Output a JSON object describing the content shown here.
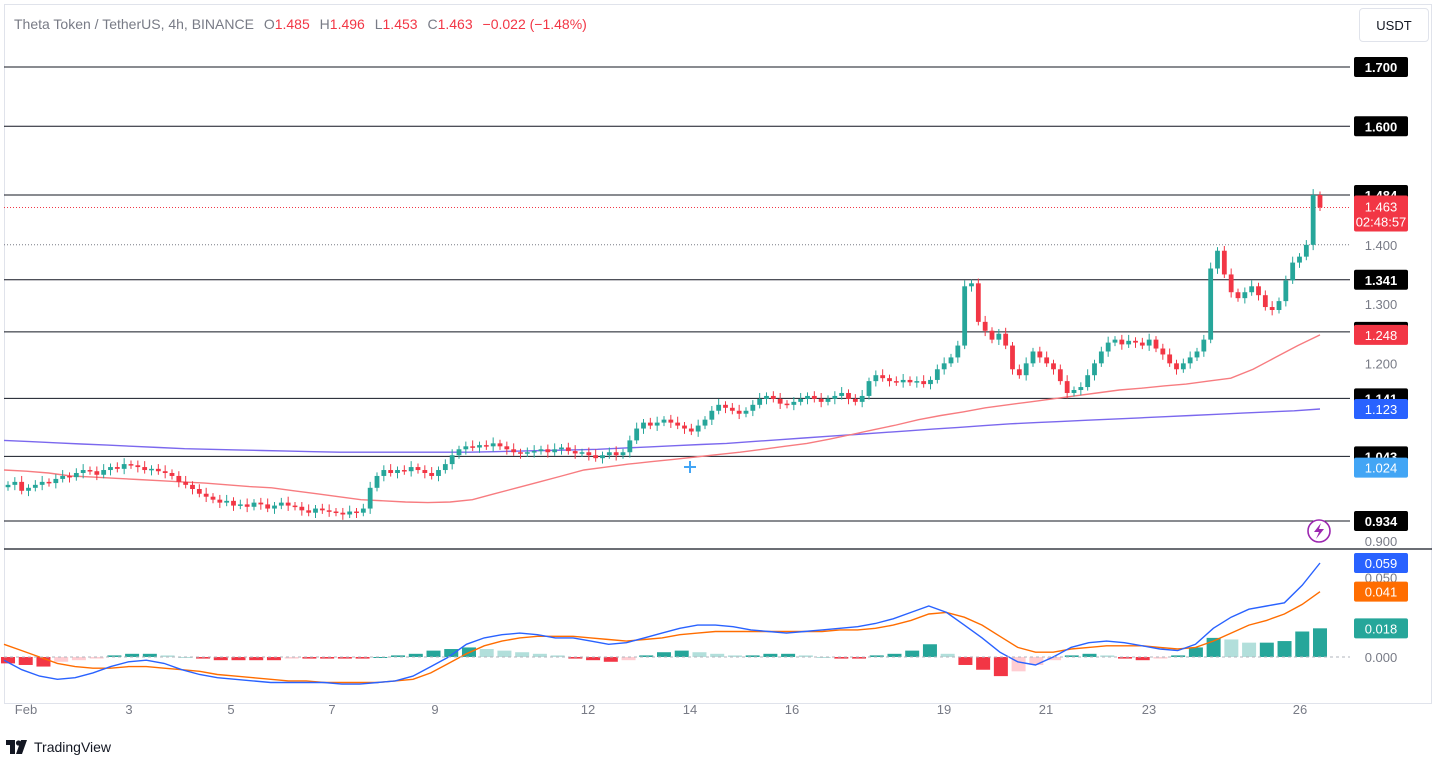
{
  "header": {
    "symbol": "Theta Token / TetherUS, 4h, BINANCE",
    "open_label": "O",
    "open": "1.485",
    "high_label": "H",
    "high": "1.496",
    "low_label": "L",
    "low": "1.453",
    "close_label": "C",
    "close": "1.463",
    "change": "−0.022 (−1.48%)"
  },
  "currency_button": "USDT",
  "footer": {
    "brand": "TradingView",
    "logo": "tradingview-logo"
  },
  "colors": {
    "up": "#26a69a",
    "down": "#f23645",
    "ema_short": "#f77c80",
    "ema_long": "#7b68ee",
    "macd": "#2962ff",
    "signal": "#ff6d00"
  },
  "chart_data": [
    {
      "type": "candlestick",
      "title": "Theta Token / TetherUS, 4h, BINANCE",
      "ylim": [
        0.88,
        1.75
      ],
      "y_ticks": [
        "1.400",
        "1.300",
        "1.200",
        "0.900"
      ],
      "x_ticks": [
        "Feb",
        "3",
        "5",
        "7",
        "9",
        "12",
        "14",
        "16",
        "19",
        "21",
        "23",
        "26"
      ],
      "last_price": "1.463",
      "countdown": "02:48:57",
      "horizontal_levels": [
        {
          "label": "1.700",
          "value": 1.7
        },
        {
          "label": "1.600",
          "value": 1.6
        },
        {
          "label": "1.484",
          "value": 1.484
        },
        {
          "label": "1.341",
          "value": 1.341
        },
        {
          "label": "1.253",
          "value": 1.253
        },
        {
          "label": "1.141",
          "value": 1.141
        },
        {
          "label": "1.043",
          "value": 1.043
        },
        {
          "label": "0.934",
          "value": 0.934
        }
      ],
      "indicator_badges": [
        {
          "label": "1.248",
          "value": 1.248,
          "color": "#f23645"
        },
        {
          "label": "1.123",
          "value": 1.123,
          "color": "#2962ff"
        },
        {
          "label": "1.024",
          "value": 1.024,
          "color": "#42a5f5"
        }
      ],
      "close_series": [
        0.995,
        1.0,
        0.985,
        0.99,
        0.995,
        1.0,
        0.998,
        1.005,
        1.01,
        1.008,
        1.015,
        1.02,
        1.018,
        1.012,
        1.02,
        1.025,
        1.022,
        1.03,
        1.028,
        1.025,
        1.02,
        1.022,
        1.018,
        1.015,
        1.01,
        1.0,
        0.995,
        0.988,
        0.98,
        0.975,
        0.97,
        0.965,
        0.968,
        0.96,
        0.962,
        0.958,
        0.965,
        0.962,
        0.955,
        0.96,
        0.965,
        0.96,
        0.958,
        0.952,
        0.948,
        0.955,
        0.952,
        0.95,
        0.948,
        0.945,
        0.95,
        0.948,
        0.955,
        0.99,
        1.01,
        1.02,
        1.015,
        1.02,
        1.018,
        1.025,
        1.02,
        1.015,
        1.01,
        1.02,
        1.03,
        1.045,
        1.055,
        1.06,
        1.058,
        1.062,
        1.06,
        1.065,
        1.06,
        1.055,
        1.05,
        1.048,
        1.05,
        1.052,
        1.055,
        1.05,
        1.055,
        1.058,
        1.052,
        1.048,
        1.05,
        1.045,
        1.04,
        1.045,
        1.05,
        1.045,
        1.05,
        1.07,
        1.09,
        1.1,
        1.095,
        1.1,
        1.105,
        1.1,
        1.095,
        1.09,
        1.085,
        1.095,
        1.105,
        1.12,
        1.13,
        1.125,
        1.12,
        1.115,
        1.12,
        1.13,
        1.14,
        1.145,
        1.14,
        1.132,
        1.13,
        1.135,
        1.14,
        1.145,
        1.14,
        1.135,
        1.14,
        1.145,
        1.15,
        1.14,
        1.135,
        1.145,
        1.17,
        1.18,
        1.175,
        1.17,
        1.168,
        1.172,
        1.168,
        1.17,
        1.165,
        1.172,
        1.19,
        1.2,
        1.21,
        1.23,
        1.33,
        1.335,
        1.27,
        1.255,
        1.24,
        1.25,
        1.23,
        1.19,
        1.18,
        1.2,
        1.22,
        1.21,
        1.2,
        1.19,
        1.17,
        1.15,
        1.155,
        1.16,
        1.18,
        1.2,
        1.22,
        1.235,
        1.24,
        1.232,
        1.238,
        1.235,
        1.23,
        1.24,
        1.225,
        1.215,
        1.2,
        1.19,
        1.2,
        1.21,
        1.22,
        1.24,
        1.36,
        1.39,
        1.35,
        1.32,
        1.31,
        1.32,
        1.33,
        1.315,
        1.295,
        1.29,
        1.305,
        1.34,
        1.37,
        1.38,
        1.4,
        1.484,
        1.463
      ],
      "ema_short_series": [
        1.02,
        1.018,
        1.015,
        1.01,
        1.008,
        1.006,
        1.004,
        1.002,
        1.0,
        0.998,
        0.995,
        0.992,
        0.99,
        0.985,
        0.98,
        0.975,
        0.97,
        0.968,
        0.966,
        0.965,
        0.966,
        0.97,
        0.98,
        0.99,
        1.0,
        1.01,
        1.02,
        1.025,
        1.03,
        1.034,
        1.038,
        1.042,
        1.046,
        1.05,
        1.055,
        1.06,
        1.065,
        1.072,
        1.08,
        1.088,
        1.096,
        1.105,
        1.112,
        1.118,
        1.125,
        1.13,
        1.135,
        1.14,
        1.145,
        1.15,
        1.155,
        1.158,
        1.162,
        1.165,
        1.17,
        1.175,
        1.19,
        1.21,
        1.23,
        1.248
      ],
      "ema_long_series": [
        1.07,
        1.068,
        1.066,
        1.064,
        1.062,
        1.06,
        1.058,
        1.056,
        1.055,
        1.054,
        1.053,
        1.052,
        1.051,
        1.05,
        1.05,
        1.05,
        1.05,
        1.05,
        1.05,
        1.051,
        1.052,
        1.053,
        1.054,
        1.055,
        1.057,
        1.059,
        1.061,
        1.063,
        1.065,
        1.068,
        1.071,
        1.074,
        1.077,
        1.08,
        1.083,
        1.086,
        1.089,
        1.092,
        1.095,
        1.098,
        1.1,
        1.102,
        1.104,
        1.106,
        1.108,
        1.11,
        1.112,
        1.114,
        1.116,
        1.118,
        1.12,
        1.123
      ]
    },
    {
      "type": "macd",
      "y_ticks": [
        "0.050",
        "0.000"
      ],
      "badges": [
        {
          "label": "0.059",
          "value": 0.059,
          "color": "#2962ff"
        },
        {
          "label": "0.041",
          "value": 0.041,
          "color": "#ff6d00"
        },
        {
          "label": "0.018",
          "value": 0.018,
          "color": "#26a69a"
        }
      ],
      "macd_series": [
        -0.002,
        -0.008,
        -0.012,
        -0.014,
        -0.013,
        -0.01,
        -0.006,
        -0.003,
        -0.002,
        -0.004,
        -0.008,
        -0.011,
        -0.013,
        -0.014,
        -0.015,
        -0.016,
        -0.016,
        -0.016,
        -0.016,
        -0.017,
        -0.017,
        -0.016,
        -0.015,
        -0.012,
        -0.006,
        0.0,
        0.008,
        0.012,
        0.014,
        0.015,
        0.014,
        0.012,
        0.012,
        0.01,
        0.008,
        0.009,
        0.012,
        0.015,
        0.018,
        0.02,
        0.02,
        0.019,
        0.017,
        0.016,
        0.015,
        0.016,
        0.017,
        0.018,
        0.019,
        0.021,
        0.024,
        0.028,
        0.032,
        0.028,
        0.02,
        0.012,
        0.003,
        -0.003,
        -0.005,
        0.0,
        0.006,
        0.009,
        0.01,
        0.009,
        0.007,
        0.005,
        0.004,
        0.008,
        0.018,
        0.025,
        0.03,
        0.032,
        0.034,
        0.045,
        0.059
      ],
      "signal_series": [
        0.008,
        0.004,
        0.0,
        -0.004,
        -0.006,
        -0.007,
        -0.007,
        -0.006,
        -0.006,
        -0.007,
        -0.008,
        -0.009,
        -0.011,
        -0.012,
        -0.013,
        -0.014,
        -0.015,
        -0.015,
        -0.016,
        -0.016,
        -0.016,
        -0.016,
        -0.015,
        -0.014,
        -0.01,
        -0.004,
        0.002,
        0.007,
        0.01,
        0.012,
        0.013,
        0.013,
        0.013,
        0.012,
        0.011,
        0.01,
        0.011,
        0.012,
        0.014,
        0.015,
        0.016,
        0.016,
        0.016,
        0.016,
        0.016,
        0.016,
        0.016,
        0.017,
        0.017,
        0.018,
        0.02,
        0.023,
        0.027,
        0.028,
        0.025,
        0.02,
        0.013,
        0.006,
        0.003,
        0.003,
        0.005,
        0.006,
        0.007,
        0.007,
        0.007,
        0.006,
        0.005,
        0.006,
        0.01,
        0.015,
        0.02,
        0.023,
        0.027,
        0.033,
        0.041
      ],
      "histogram": [
        -0.004,
        -0.005,
        -0.006,
        -0.003,
        -0.002,
        -0.001,
        0.001,
        0.002,
        0.002,
        0.001,
        0.0,
        -0.001,
        -0.002,
        -0.002,
        -0.002,
        -0.002,
        -0.001,
        -0.001,
        -0.001,
        -0.001,
        -0.001,
        0.0,
        0.001,
        0.002,
        0.004,
        0.005,
        0.006,
        0.005,
        0.004,
        0.003,
        0.002,
        0.001,
        -0.001,
        -0.002,
        -0.003,
        -0.002,
        0.001,
        0.003,
        0.004,
        0.003,
        0.002,
        0.001,
        0.001,
        0.002,
        0.002,
        0.001,
        0.0,
        -0.001,
        -0.001,
        0.001,
        0.002,
        0.004,
        0.008,
        0.002,
        -0.005,
        -0.008,
        -0.012,
        -0.009,
        -0.005,
        -0.002,
        0.001,
        0.002,
        0.001,
        -0.001,
        -0.002,
        -0.001,
        0.001,
        0.006,
        0.012,
        0.011,
        0.009,
        0.009,
        0.01,
        0.016,
        0.018
      ]
    }
  ]
}
